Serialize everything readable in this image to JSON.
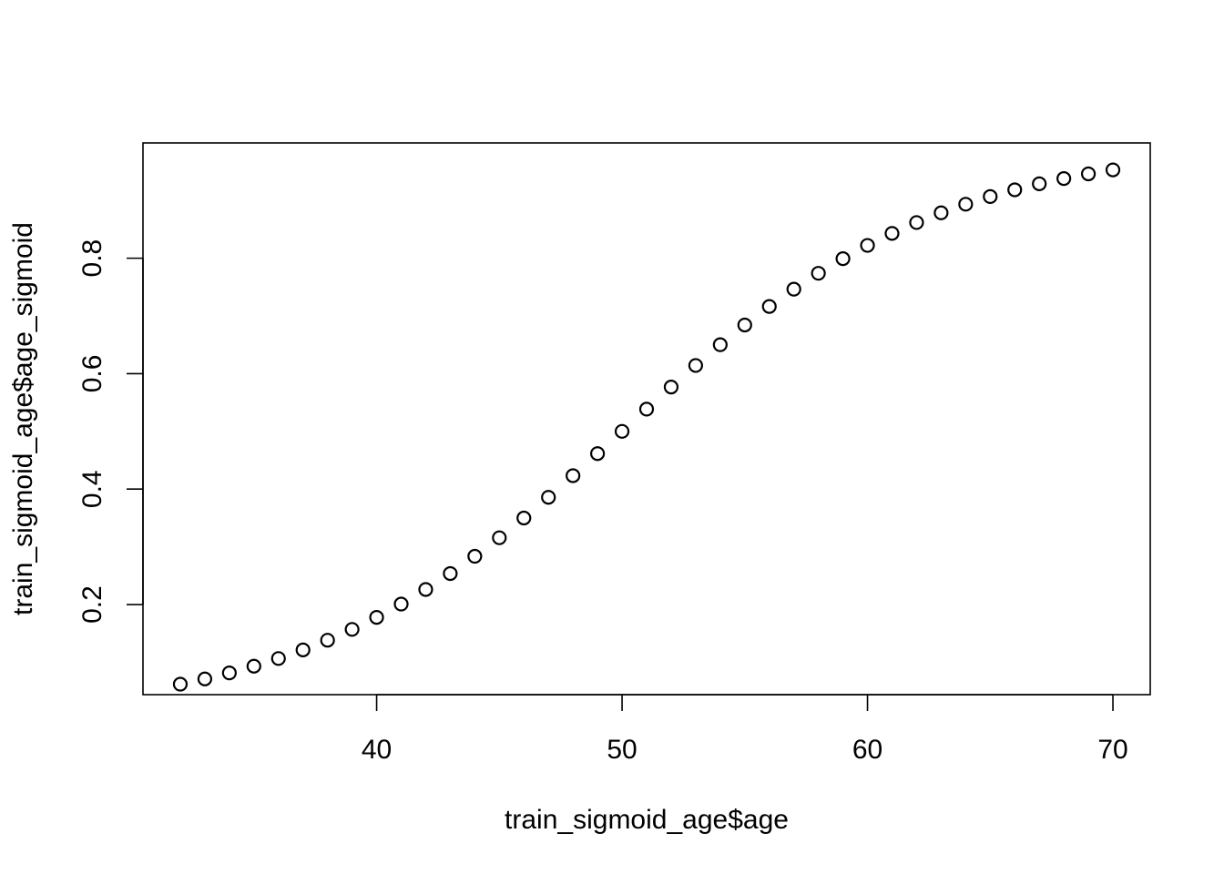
{
  "chart_data": {
    "type": "scatter",
    "title": "",
    "xlabel": "train_sigmoid_age$age",
    "ylabel": "train_sigmoid_age$age_sigmoid",
    "xlim": [
      30.48,
      71.52
    ],
    "ylim": [
      0.0439,
      0.9997
    ],
    "x_ticks": [
      40,
      50,
      60,
      70
    ],
    "x_tick_labels": [
      "40",
      "50",
      "60",
      "70"
    ],
    "y_ticks": [
      0.2,
      0.4,
      0.6,
      0.8
    ],
    "y_tick_labels": [
      "0.2",
      "0.4",
      "0.6",
      "0.8"
    ],
    "grid": false,
    "legend": "none",
    "marker": "open-circle",
    "series": [
      {
        "x": [
          32,
          33,
          34,
          35,
          36,
          37,
          38,
          39,
          40,
          41,
          42,
          43,
          44,
          45,
          46,
          47,
          48,
          49,
          50,
          51,
          52,
          53,
          54,
          55,
          56,
          57,
          58,
          59,
          60,
          61,
          62,
          63,
          64,
          65,
          66,
          67,
          68,
          69,
          70
        ],
        "y": [
          0.062,
          0.0711,
          0.0815,
          0.0932,
          0.1065,
          0.1214,
          0.1382,
          0.157,
          0.1778,
          0.2008,
          0.2261,
          0.2537,
          0.2836,
          0.3157,
          0.3499,
          0.3858,
          0.4232,
          0.4615,
          0.5,
          0.5385,
          0.5768,
          0.6142,
          0.6501,
          0.6843,
          0.7164,
          0.7463,
          0.7739,
          0.7992,
          0.8222,
          0.843,
          0.8618,
          0.8786,
          0.8935,
          0.9068,
          0.9185,
          0.9289,
          0.938,
          0.9461,
          0.953
        ]
      }
    ]
  }
}
